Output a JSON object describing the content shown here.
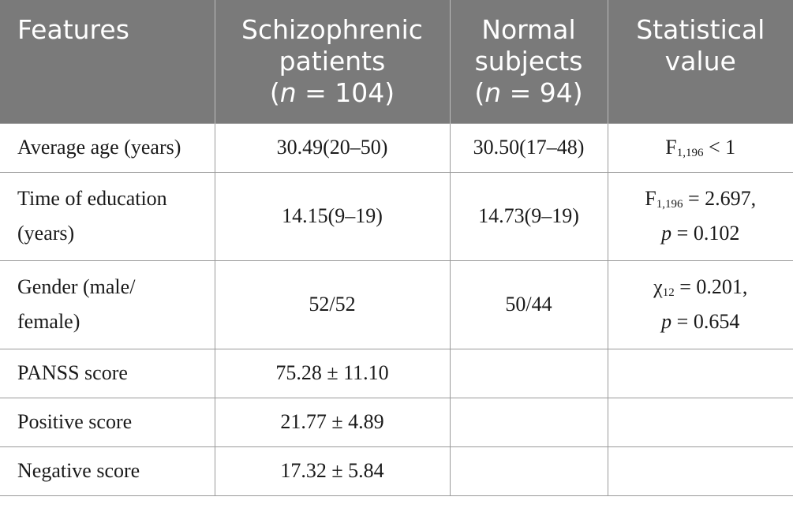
{
  "header": {
    "col1": "Features",
    "col2_line1": "Schizophrenic",
    "col2_line2": "patients",
    "col2_n_prefix": "(",
    "col2_n_var": "n",
    "col2_n_value": " = 104)",
    "col3_line1": "Normal",
    "col3_line2": "subjects",
    "col3_n_prefix": "(",
    "col3_n_var": "n",
    "col3_n_value": " = 94)",
    "col4_line1": "Statistical",
    "col4_line2": "value"
  },
  "rows": [
    {
      "feature": "Average age (years)",
      "patients": "30.49(20–50)",
      "normal": "30.50(17–48)",
      "stat_symbol": "F",
      "stat_sub": "1,196",
      "stat_value": " < 1"
    },
    {
      "feature_line1": "Time of education",
      "feature_line2": "(years)",
      "patients": "14.15(9–19)",
      "normal": "14.73(9–19)",
      "stat_symbol": "F",
      "stat_sub": "1,196",
      "stat_value": " = 2.697,",
      "stat_p_var": "p",
      "stat_p_value": " = 0.102"
    },
    {
      "feature_line1": "Gender (male/",
      "feature_line2": "female)",
      "patients": "52/52",
      "normal": "50/44",
      "stat_symbol": "χ",
      "stat_sub": "12",
      "stat_value": " = 0.201,",
      "stat_p_var": "p",
      "stat_p_value": " = 0.654"
    },
    {
      "feature": "PANSS score",
      "patients": "75.28 ± 11.10",
      "normal": "",
      "stat": ""
    },
    {
      "feature": "Positive score",
      "patients": "21.77 ± 4.89",
      "normal": "",
      "stat": ""
    },
    {
      "feature": "Negative score",
      "patients": "17.32 ± 5.84",
      "normal": "",
      "stat": ""
    }
  ],
  "colors": {
    "header_bg": "#7a7a7a",
    "header_text": "#ffffff",
    "grid": "#9a9a9a"
  }
}
